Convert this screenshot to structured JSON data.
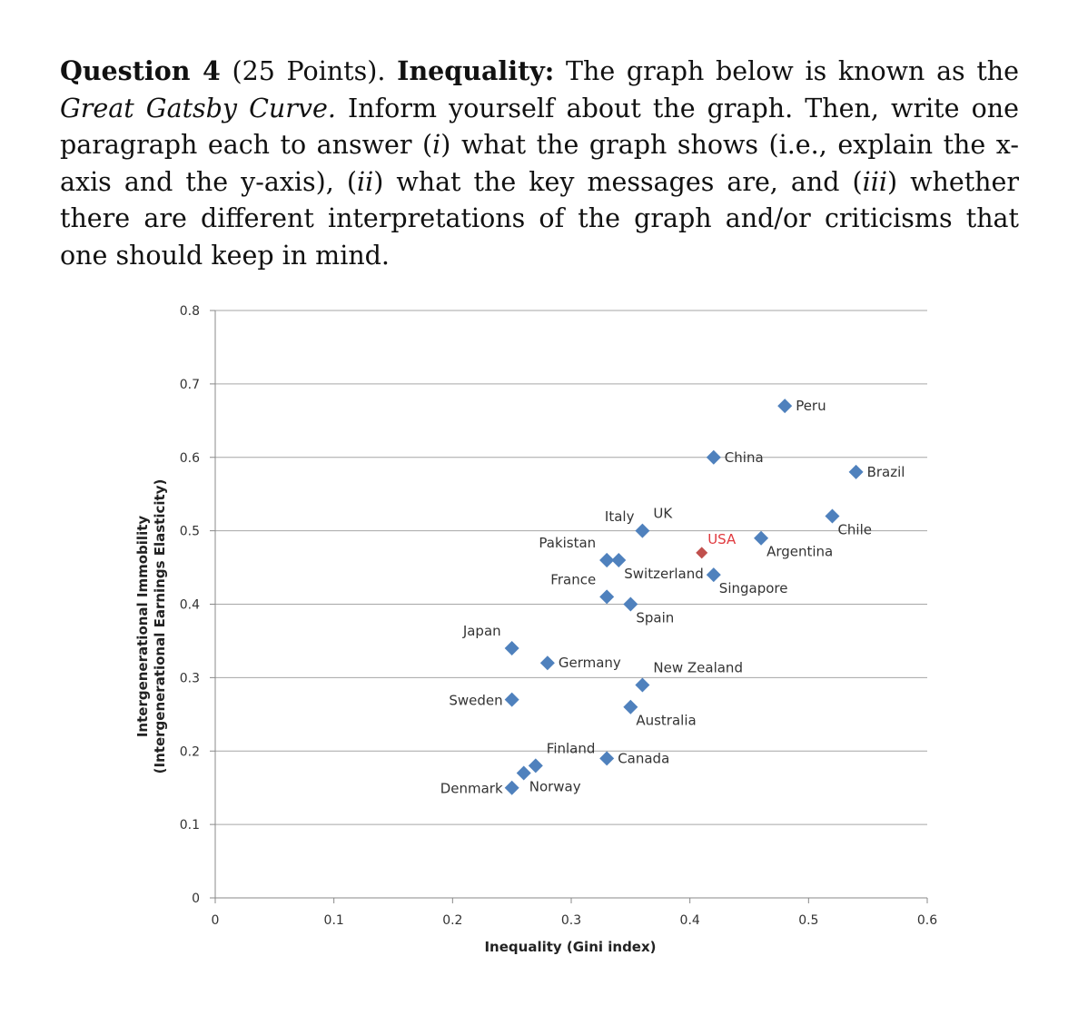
{
  "question": {
    "label": "Question 4",
    "points": "(25 Points).",
    "topic": "Inequality:",
    "text_a": "The graph below is known as the",
    "curve_name": "Great Gatsby Curve.",
    "text_b": "Inform yourself about the graph. Then, write one paragraph each to answer (",
    "roman_1": "i",
    "text_c": ") what the graph shows (i.e., explain the x-axis and the y-axis), (",
    "roman_2": "ii",
    "text_d": ") what the key messages are, and (",
    "roman_3": "iii",
    "text_e": ") whether there are different interpretations of the graph and/or criticisms that one should keep in mind."
  },
  "chart_data": {
    "type": "scatter",
    "xlabel": "Inequality (Gini index)",
    "ylabel_line1": "Intergenerational Immobility",
    "ylabel_line2": "(Intergenerational Earnings Elasticity)",
    "xlim": [
      0,
      0.6
    ],
    "ylim": [
      0,
      0.8
    ],
    "x_ticks": [
      0,
      0.1,
      0.2,
      0.3,
      0.4,
      0.5,
      0.6
    ],
    "x_tick_labels": [
      "0",
      "0.1",
      "0.2",
      "0.3",
      "0.4",
      "0.5",
      "0.6"
    ],
    "y_ticks": [
      0,
      0.1,
      0.2,
      0.3,
      0.4,
      0.5,
      0.6,
      0.7,
      0.8
    ],
    "y_tick_labels": [
      "0",
      "0.1",
      "0.2",
      "0.3",
      "0.4",
      "0.5",
      "0.6",
      "0.7",
      "0.8"
    ],
    "grid": "horizontal",
    "colors": {
      "default": "#4f81bd",
      "highlight": "#c0504d",
      "grid": "#a6a6a6"
    },
    "points": [
      {
        "label": "Peru",
        "x": 0.48,
        "y": 0.67,
        "label_pos": "right"
      },
      {
        "label": "China",
        "x": 0.42,
        "y": 0.6,
        "label_pos": "right"
      },
      {
        "label": "Brazil",
        "x": 0.54,
        "y": 0.58,
        "label_pos": "right"
      },
      {
        "label": "Chile",
        "x": 0.52,
        "y": 0.52,
        "label_pos": "below-right"
      },
      {
        "label": "Italy",
        "x": 0.33,
        "y": 0.46,
        "label_pos": "above-far"
      },
      {
        "label": "UK",
        "x": 0.36,
        "y": 0.5,
        "label_pos": "above-right"
      },
      {
        "label": "Argentina",
        "x": 0.46,
        "y": 0.49,
        "label_pos": "below-right"
      },
      {
        "label": "USA",
        "x": 0.41,
        "y": 0.47,
        "label_pos": "above",
        "highlight": true
      },
      {
        "label": "Pakistan",
        "x": 0.33,
        "y": 0.46,
        "label_pos": "above-left"
      },
      {
        "label": "Switzerland",
        "x": 0.34,
        "y": 0.46,
        "label_pos": "below-right"
      },
      {
        "label": "Singapore",
        "x": 0.42,
        "y": 0.44,
        "label_pos": "below-right"
      },
      {
        "label": "France",
        "x": 0.33,
        "y": 0.41,
        "label_pos": "above-left"
      },
      {
        "label": "Spain",
        "x": 0.35,
        "y": 0.4,
        "label_pos": "below-right"
      },
      {
        "label": "Japan",
        "x": 0.25,
        "y": 0.34,
        "label_pos": "above-left"
      },
      {
        "label": "Germany",
        "x": 0.28,
        "y": 0.32,
        "label_pos": "right"
      },
      {
        "label": "New Zealand",
        "x": 0.36,
        "y": 0.29,
        "label_pos": "above-right"
      },
      {
        "label": "Sweden",
        "x": 0.25,
        "y": 0.27,
        "label_pos": "left"
      },
      {
        "label": "Australia",
        "x": 0.35,
        "y": 0.26,
        "label_pos": "below-right"
      },
      {
        "label": "Finland",
        "x": 0.27,
        "y": 0.18,
        "label_pos": "above-right"
      },
      {
        "label": "Canada",
        "x": 0.33,
        "y": 0.19,
        "label_pos": "right"
      },
      {
        "label": "Norway",
        "x": 0.26,
        "y": 0.17,
        "label_pos": "below-right"
      },
      {
        "label": "Denmark",
        "x": 0.25,
        "y": 0.15,
        "label_pos": "left"
      }
    ]
  }
}
